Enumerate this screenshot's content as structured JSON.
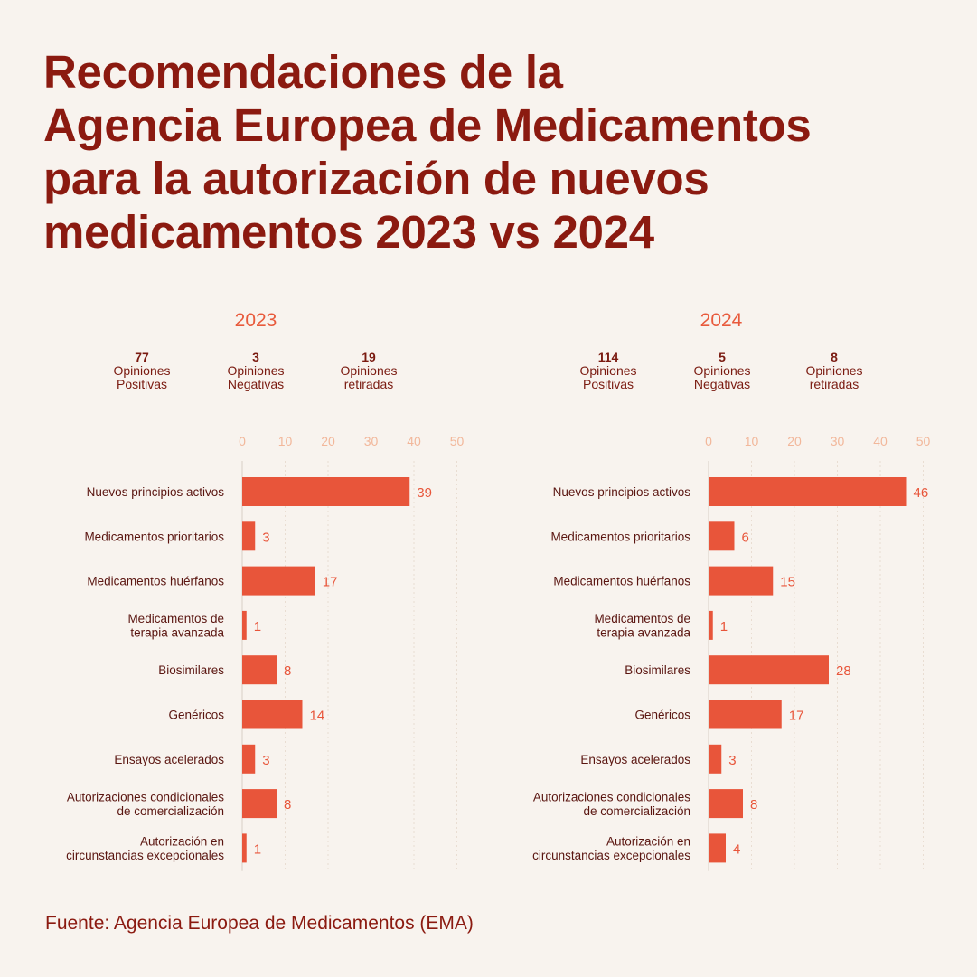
{
  "title_lines": [
    "Recomendaciones de la",
    "Agencia Europea de Medicamentos",
    "para la autorización de nuevos",
    "medicamentos 2023 vs 2024"
  ],
  "footer": "Fuente: Agencia Europea de Medicamentos (EMA)",
  "colors": {
    "bar": "#e8553a",
    "title": "#8b1a10",
    "tick": "#f2b79a",
    "label": "#5a1510"
  },
  "panels": [
    {
      "year": "2023",
      "stats": [
        {
          "value": "77",
          "label_lines": [
            "Opiniones",
            "Positivas"
          ]
        },
        {
          "value": "3",
          "label_lines": [
            "Opiniones",
            "Negativas"
          ]
        },
        {
          "value": "19",
          "label_lines": [
            "Opiniones",
            "retiradas"
          ]
        }
      ]
    },
    {
      "year": "2024",
      "stats": [
        {
          "value": "114",
          "label_lines": [
            "Opiniones",
            "Positivas"
          ]
        },
        {
          "value": "5",
          "label_lines": [
            "Opiniones",
            "Negativas"
          ]
        },
        {
          "value": "8",
          "label_lines": [
            "Opiniones",
            "retiradas"
          ]
        }
      ]
    }
  ],
  "chart_data": [
    {
      "type": "bar",
      "orientation": "horizontal",
      "title": "2023",
      "categories": [
        [
          "Nuevos principios activos"
        ],
        [
          "Medicamentos prioritarios"
        ],
        [
          "Medicamentos huérfanos"
        ],
        [
          "Medicamentos de",
          "terapia avanzada"
        ],
        [
          "Biosimilares"
        ],
        [
          "Genéricos"
        ],
        [
          "Ensayos acelerados"
        ],
        [
          "Autorizaciones condicionales",
          "de comercialización"
        ],
        [
          "Autorización en",
          "circunstancias excepcionales"
        ]
      ],
      "values": [
        39,
        3,
        17,
        1,
        8,
        14,
        3,
        8,
        1
      ],
      "xlim": [
        0,
        50
      ],
      "xticks": [
        0,
        10,
        20,
        30,
        40,
        50
      ],
      "grid": true
    },
    {
      "type": "bar",
      "orientation": "horizontal",
      "title": "2024",
      "categories": [
        [
          "Nuevos principios activos"
        ],
        [
          "Medicamentos prioritarios"
        ],
        [
          "Medicamentos huérfanos"
        ],
        [
          "Medicamentos de",
          "terapia avanzada"
        ],
        [
          "Biosimilares"
        ],
        [
          "Genéricos"
        ],
        [
          "Ensayos acelerados"
        ],
        [
          "Autorizaciones condicionales",
          "de comercialización"
        ],
        [
          "Autorización en",
          "circunstancias excepcionales"
        ]
      ],
      "values": [
        46,
        6,
        15,
        1,
        28,
        17,
        3,
        8,
        4
      ],
      "xlim": [
        0,
        50
      ],
      "xticks": [
        0,
        10,
        20,
        30,
        40,
        50
      ],
      "grid": true
    }
  ]
}
